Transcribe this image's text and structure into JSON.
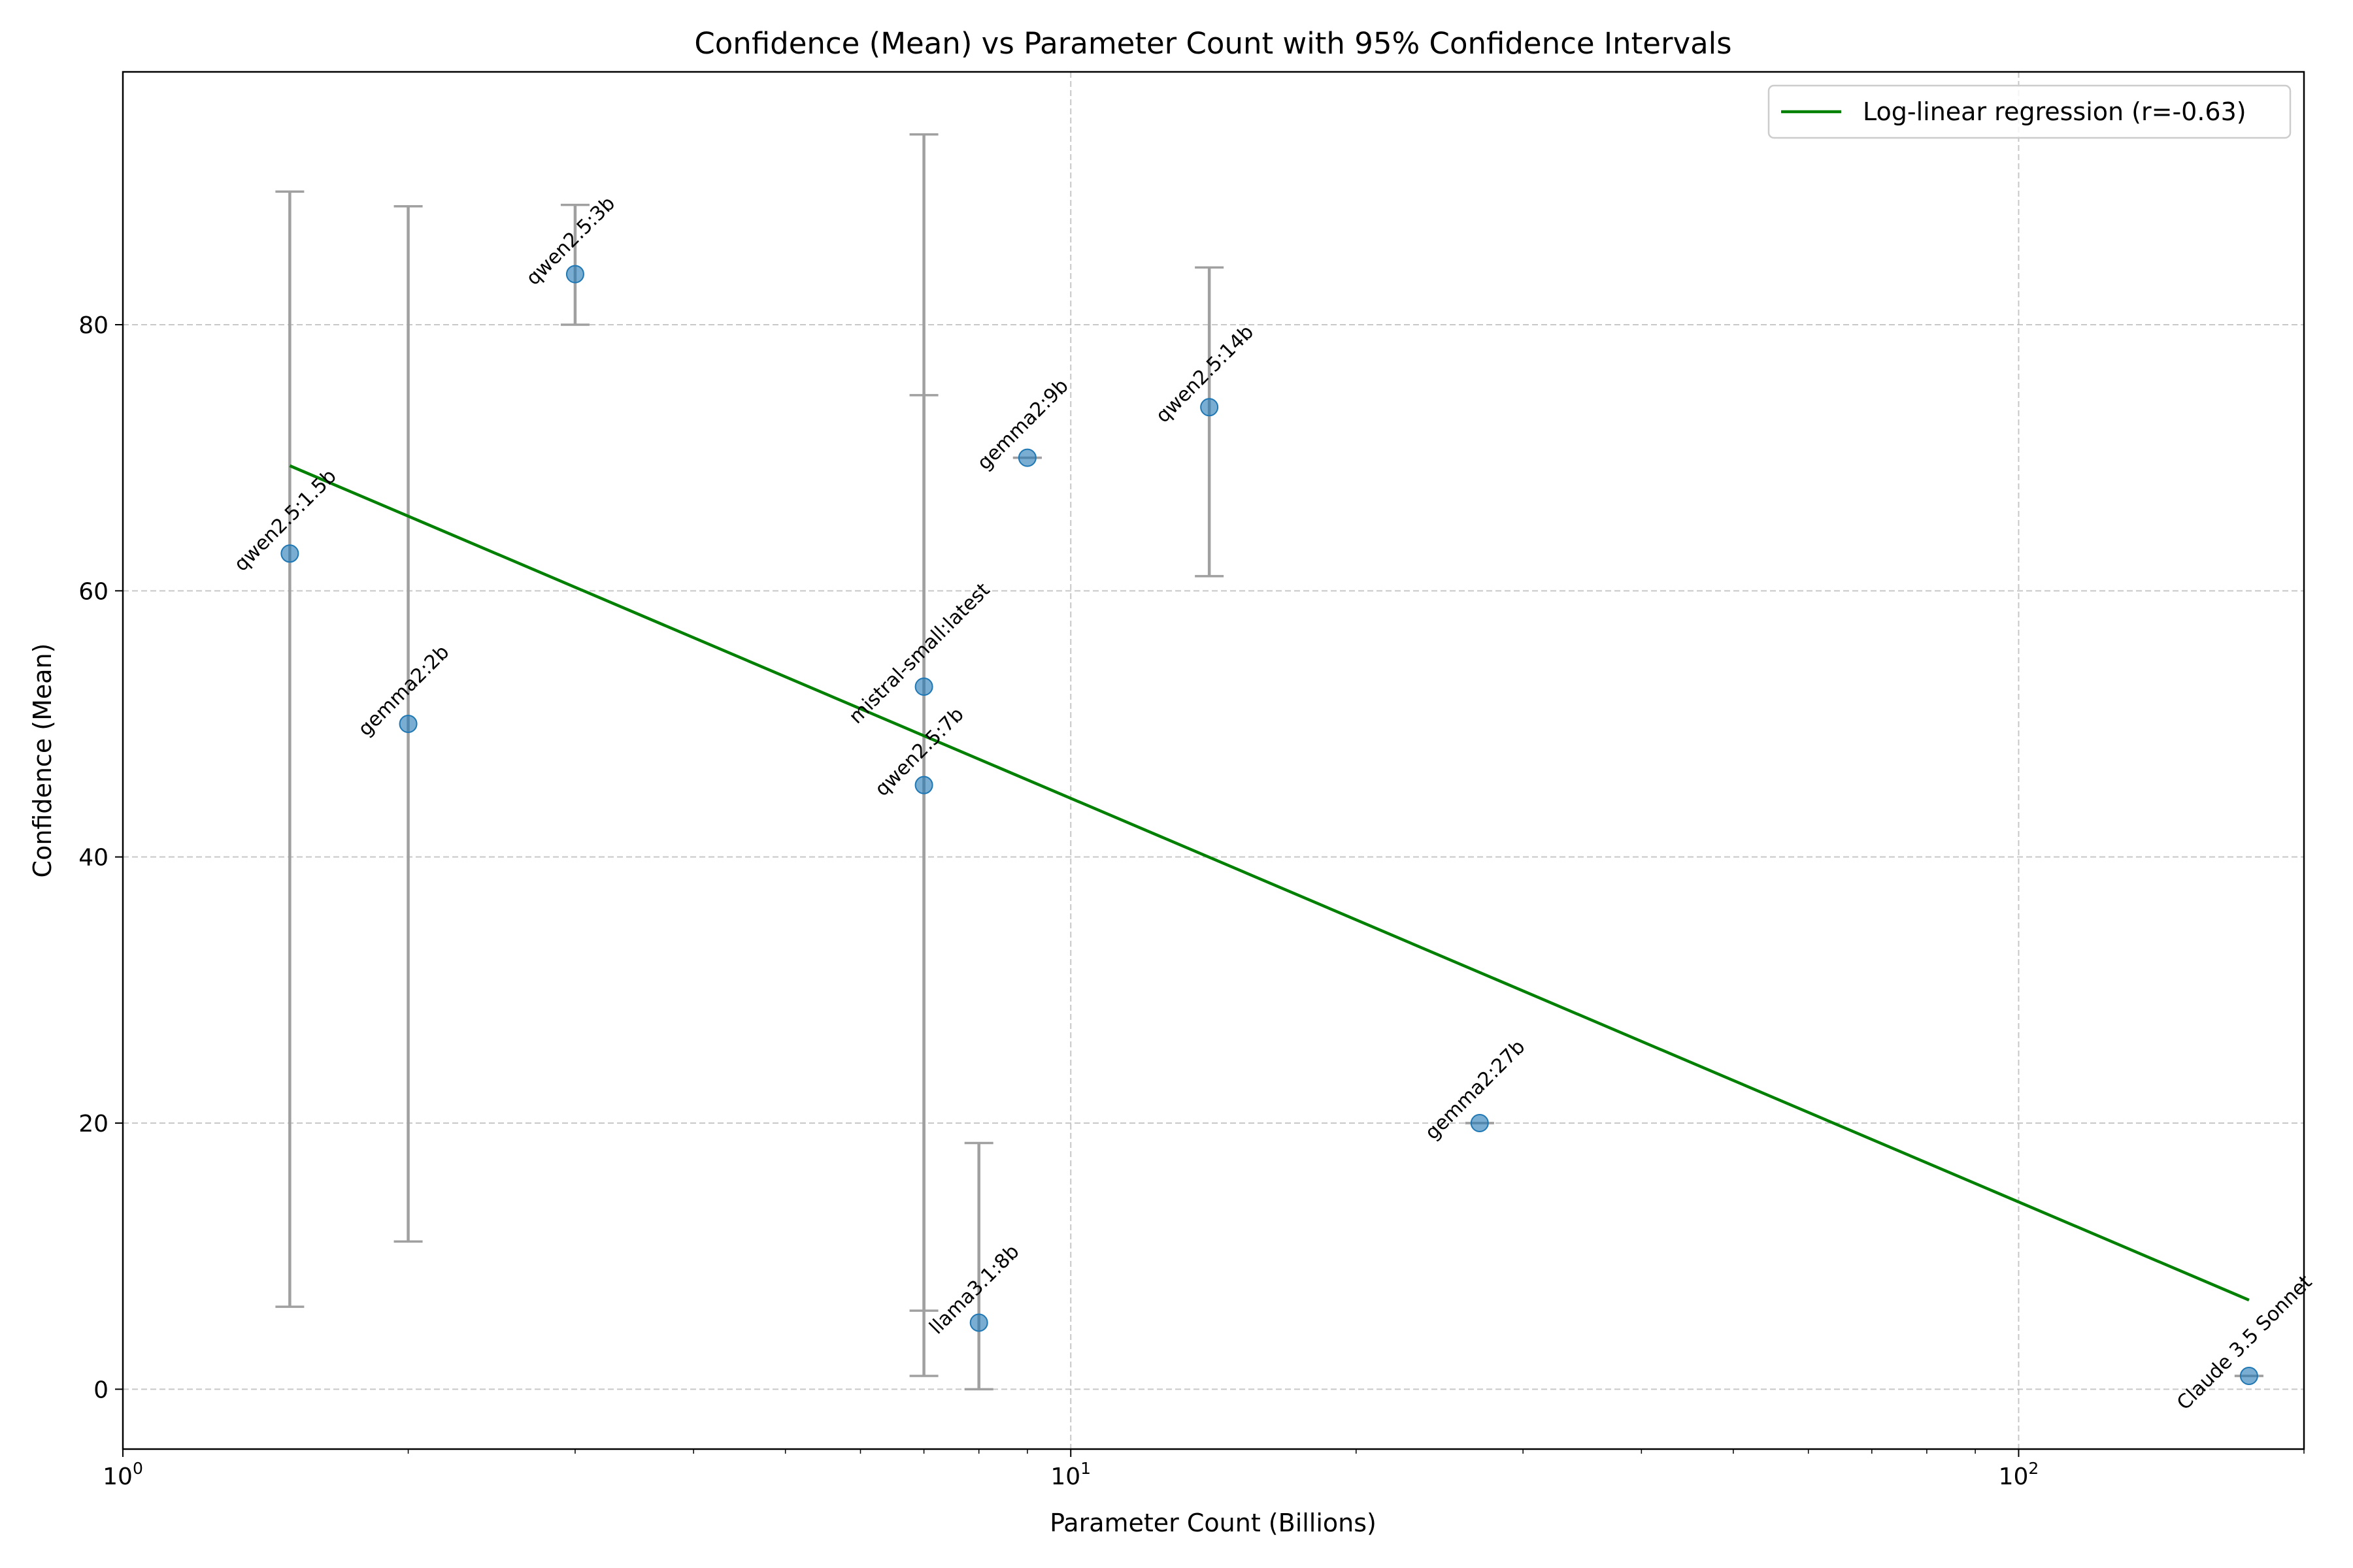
{
  "chart_data": {
    "type": "scatter",
    "title": "Confidence (Mean) vs Parameter Count with 95% Confidence Intervals",
    "xlabel": "Parameter Count (Billions)",
    "ylabel": "Confidence (Mean)",
    "xscale": "log",
    "xlim": [
      1,
      200
    ],
    "ylim": [
      -4.5,
      99
    ],
    "x_ticks": [
      {
        "value": 1,
        "base": "10",
        "exp": "0"
      },
      {
        "value": 10,
        "base": "10",
        "exp": "1"
      },
      {
        "value": 100,
        "base": "10",
        "exp": "2"
      }
    ],
    "y_ticks": [
      0,
      20,
      40,
      60,
      80
    ],
    "grid": true,
    "legend": {
      "position": "top-right",
      "entries": [
        {
          "label": "Log-linear regression (r=-0.63)",
          "color": "#008000"
        }
      ]
    },
    "point_color": "#1f77b4",
    "errorbar_color": "#a0a0a0",
    "points": [
      {
        "label": "qwen2.5:1.5b",
        "x": 1.5,
        "y": 62.8,
        "ci": [
          6.2,
          90
        ]
      },
      {
        "label": "gemma2:2b",
        "x": 2,
        "y": 50,
        "ci": [
          11.1,
          88.9
        ]
      },
      {
        "label": "qwen2.5:3b",
        "x": 3,
        "y": 83.8,
        "ci": [
          80,
          89
        ]
      },
      {
        "label": "mistral-small:latest",
        "x": 7,
        "y": 52.8,
        "ci": [
          1,
          94.3
        ]
      },
      {
        "label": "qwen2.5:7b",
        "x": 7,
        "y": 45.4,
        "ci": [
          5.9,
          74.7
        ]
      },
      {
        "label": "llama3.1:8b",
        "x": 8,
        "y": 5,
        "ci": [
          0,
          18.5
        ]
      },
      {
        "label": "gemma2:9b",
        "x": 9,
        "y": 70,
        "ci": [
          70,
          70
        ]
      },
      {
        "label": "qwen2.5:14b",
        "x": 14,
        "y": 73.8,
        "ci": [
          61.1,
          84.3
        ]
      },
      {
        "label": "gemma2:27b",
        "x": 27,
        "y": 20,
        "ci": [
          20,
          20
        ]
      },
      {
        "label": "Claude 3.5 Sonnet",
        "x": 175,
        "y": 1,
        "ci": [
          1,
          1
        ]
      }
    ],
    "regression": {
      "x": [
        1.5,
        175
      ],
      "y": [
        69.4,
        6.7
      ],
      "color": "#008000"
    }
  }
}
